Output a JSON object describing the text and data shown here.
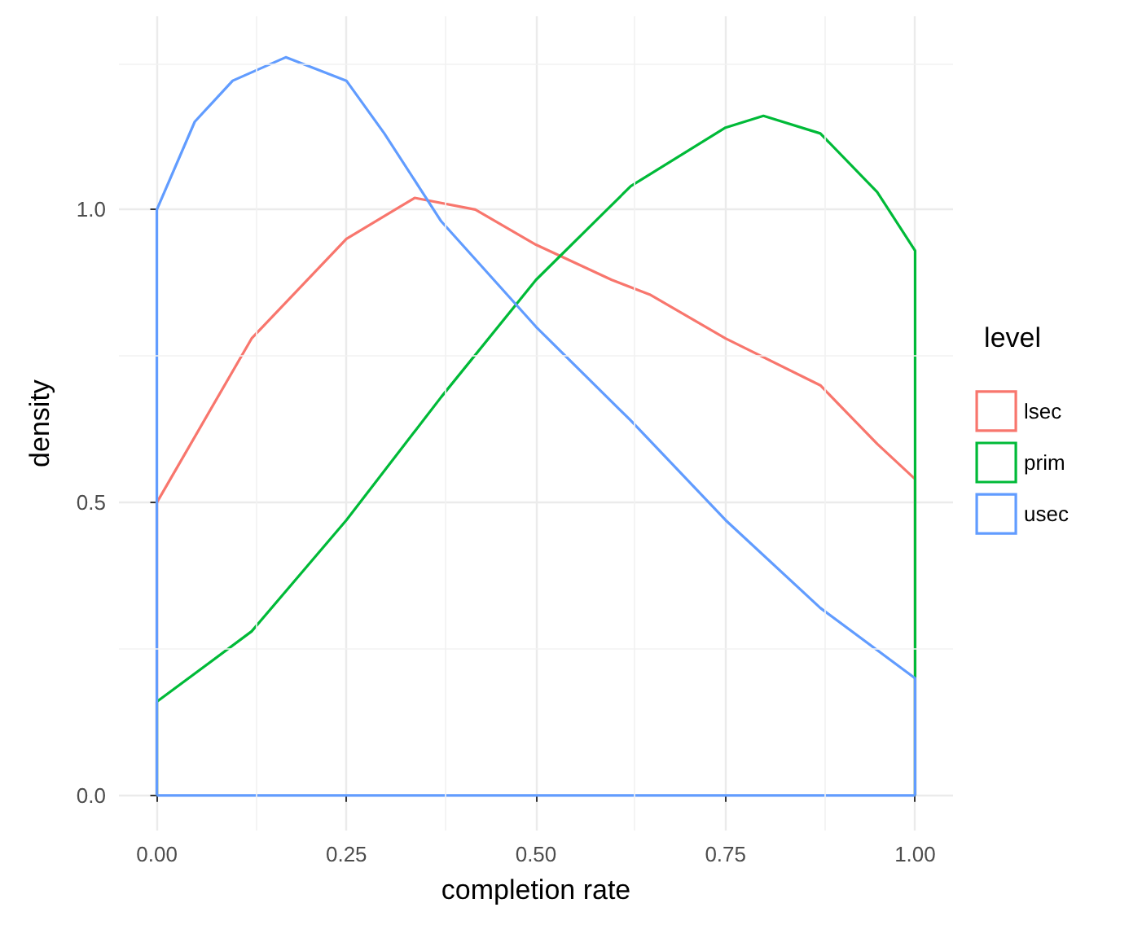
{
  "chart_data": {
    "type": "line",
    "xlabel": "completion rate",
    "ylabel": "density",
    "legend_title": "level",
    "legend": "right",
    "grid": true,
    "marker": "none",
    "line_style": "solid",
    "xlim": [
      -0.05,
      1.05
    ],
    "ylim": [
      -0.06,
      1.33
    ],
    "xticks": [
      {
        "value": 0,
        "label": "0.00"
      },
      {
        "value": 0.25,
        "label": "0.25"
      },
      {
        "value": 0.5,
        "label": "0.50"
      },
      {
        "value": 0.75,
        "label": "0.75"
      },
      {
        "value": 1,
        "label": "1.00"
      }
    ],
    "yticks": [
      {
        "value": 0,
        "label": "0.0"
      },
      {
        "value": 0.5,
        "label": "0.5"
      },
      {
        "value": 1,
        "label": "1.0"
      }
    ],
    "series": [
      {
        "name": "lsec",
        "color": "#f8766d",
        "x": [
          0,
          0,
          0.125,
          0.25,
          0.34,
          0.42,
          0.5,
          0.6,
          0.65,
          0.75,
          0.875,
          0.95,
          1,
          1
        ],
        "values": [
          0,
          0.5,
          0.78,
          0.95,
          1.02,
          1.0,
          0.94,
          0.88,
          0.855,
          0.78,
          0.7,
          0.6,
          0.54,
          0
        ]
      },
      {
        "name": "prim",
        "color": "#00ba38",
        "x": [
          0,
          0,
          0.125,
          0.25,
          0.375,
          0.5,
          0.625,
          0.75,
          0.8,
          0.875,
          0.95,
          1,
          1
        ],
        "values": [
          0,
          0.16,
          0.28,
          0.47,
          0.68,
          0.88,
          1.04,
          1.14,
          1.16,
          1.13,
          1.03,
          0.93,
          0
        ]
      },
      {
        "name": "usec",
        "color": "#619cff",
        "x": [
          0,
          0,
          0.05,
          0.1,
          0.17,
          0.25,
          0.3,
          0.375,
          0.5,
          0.625,
          0.75,
          0.875,
          1,
          1
        ],
        "values": [
          0,
          1.0,
          1.15,
          1.22,
          1.26,
          1.22,
          1.13,
          0.98,
          0.8,
          0.64,
          0.47,
          0.32,
          0.2,
          0
        ]
      },
      {
        "color": "#619cff",
        "x": [
          0,
          1
        ],
        "values": [
          0,
          0
        ]
      }
    ]
  }
}
